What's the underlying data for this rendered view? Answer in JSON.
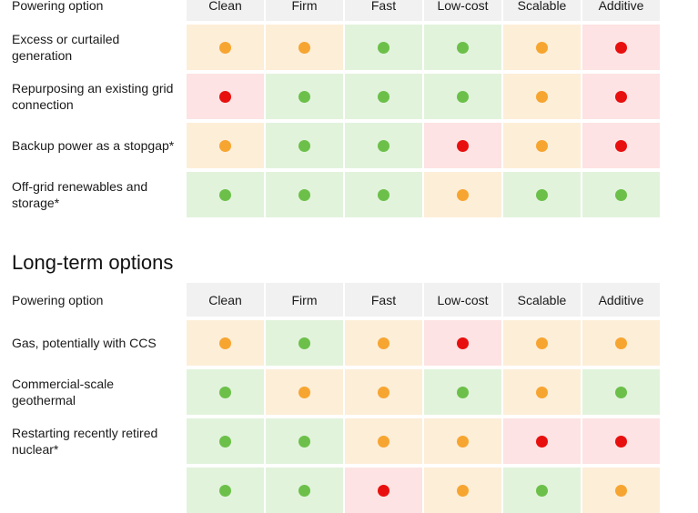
{
  "colors": {
    "green": "#6cc04a",
    "orange": "#f7a531",
    "red": "#e8100f"
  },
  "section1": {
    "header_label": "Powering option",
    "columns": [
      "Clean",
      "Firm",
      "Fast",
      "Low-cost",
      "Scalable",
      "Additive"
    ],
    "rows": [
      {
        "label": "Excess or curtailed generation",
        "ratings": [
          "orange",
          "orange",
          "green",
          "green",
          "orange",
          "red"
        ]
      },
      {
        "label": "Repurposing an existing grid connection",
        "ratings": [
          "red",
          "green",
          "green",
          "green",
          "orange",
          "red"
        ]
      },
      {
        "label": "Backup power as a stopgap*",
        "ratings": [
          "orange",
          "green",
          "green",
          "red",
          "orange",
          "red"
        ]
      },
      {
        "label": "Off-grid renewables and storage*",
        "ratings": [
          "green",
          "green",
          "green",
          "orange",
          "green",
          "green"
        ]
      }
    ]
  },
  "section2": {
    "title": "Long-term options",
    "header_label": "Powering option",
    "columns": [
      "Clean",
      "Firm",
      "Fast",
      "Low-cost",
      "Scalable",
      "Additive"
    ],
    "rows": [
      {
        "label": "Gas, potentially with CCS",
        "ratings": [
          "orange",
          "green",
          "orange",
          "red",
          "orange",
          "orange"
        ]
      },
      {
        "label": "Commercial-scale geothermal",
        "ratings": [
          "green",
          "orange",
          "orange",
          "green",
          "orange",
          "green"
        ]
      },
      {
        "label": "Restarting recently retired nuclear*",
        "ratings": [
          "green",
          "green",
          "orange",
          "orange",
          "red",
          "red"
        ]
      },
      {
        "label": "",
        "ratings": [
          "green",
          "green",
          "red",
          "orange",
          "green",
          "orange"
        ]
      }
    ]
  }
}
